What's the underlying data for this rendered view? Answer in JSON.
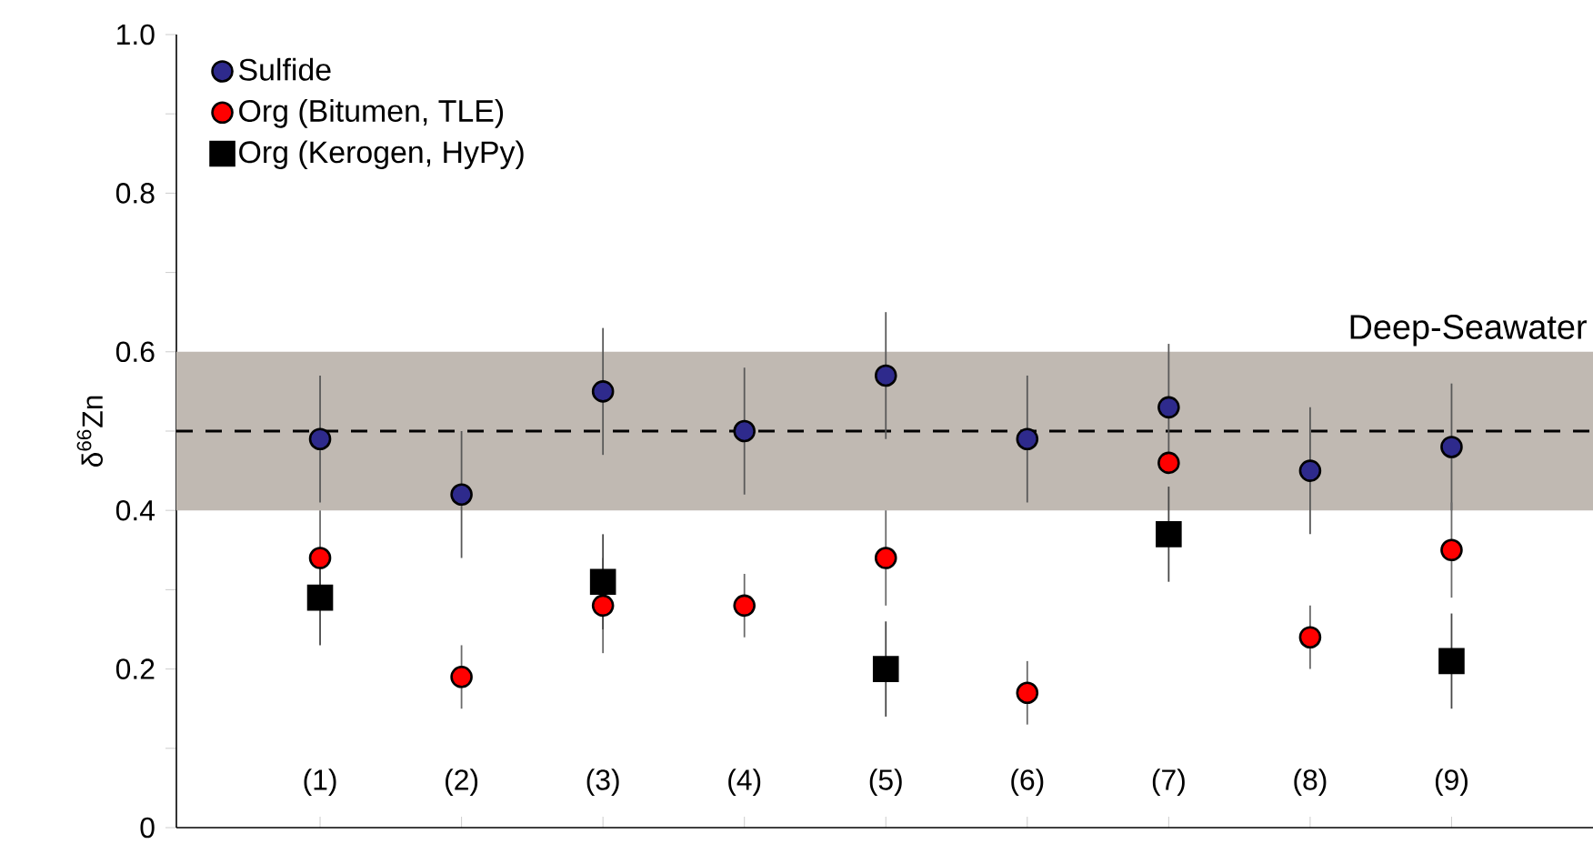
{
  "chart_data": {
    "type": "scatter",
    "ylabel": "δ$^{66}$Zn",
    "categories": [
      "(1)",
      "(2)",
      "(3)",
      "(4)",
      "(5)",
      "(6)",
      "(7)",
      "(8)",
      "(9)"
    ],
    "series": [
      {
        "name": "Sulfide",
        "color": "#2e2a8c",
        "marker": "circle",
        "values": [
          0.49,
          0.42,
          0.55,
          0.5,
          0.57,
          0.49,
          0.53,
          0.45,
          0.48
        ],
        "errors": [
          0.08,
          0.08,
          0.08,
          0.08,
          0.08,
          0.08,
          0.08,
          0.08,
          0.08
        ]
      },
      {
        "name": "Org (Bitumen, TLE)",
        "color": "#ff0000",
        "marker": "circle",
        "values": [
          0.34,
          0.19,
          0.28,
          0.28,
          0.34,
          0.17,
          0.46,
          0.24,
          0.35
        ],
        "errors": [
          0.06,
          0.04,
          0.06,
          0.04,
          0.06,
          0.04,
          null,
          0.04,
          0.06
        ]
      },
      {
        "name": "Org (Kerogen, HyPy)",
        "color": "#000000",
        "marker": "square",
        "values": [
          0.29,
          null,
          0.31,
          null,
          0.2,
          null,
          0.37,
          null,
          0.21
        ],
        "errors": [
          0.06,
          null,
          0.06,
          null,
          0.06,
          null,
          0.06,
          null,
          0.06
        ]
      }
    ],
    "ylim": [
      0,
      1.0
    ],
    "yticks": [
      0,
      {
        "value": 0.1,
        "label": null
      },
      0.2,
      {
        "value": 0.3,
        "label": null
      },
      0.4,
      {
        "value": 0.5,
        "label": null
      },
      0.6,
      {
        "value": 0.7,
        "label": null
      },
      0.8,
      {
        "value": 0.9,
        "label": null
      },
      "1.0"
    ],
    "bands": [
      {
        "axis": "y",
        "from": 0.4,
        "to": 0.6,
        "label": "Deep-Seawater",
        "color": "#c0b9b2"
      }
    ],
    "ref_lines": [
      {
        "axis": "y",
        "value": 0.5,
        "color": "#000000",
        "line_style": "dashed"
      }
    ],
    "grid": false,
    "legend": "top left"
  }
}
